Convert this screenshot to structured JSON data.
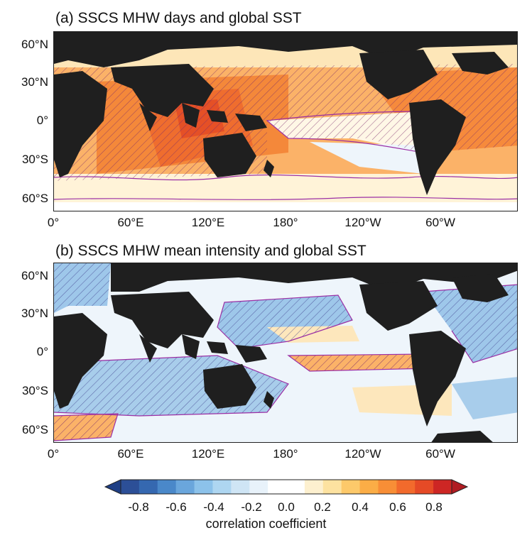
{
  "panels": [
    {
      "title": "(a) SSCS MHW days and global SST",
      "lat_ticks": [
        "60°N",
        "30°N",
        "0°",
        "30°S",
        "60°S"
      ],
      "lon_ticks": [
        "0°",
        "60°E",
        "120°E",
        "180°",
        "120°W",
        "60°W"
      ]
    },
    {
      "title": "(b) SSCS MHW mean intensity and global SST",
      "lat_ticks": [
        "60°N",
        "30°N",
        "0°",
        "30°S",
        "60°S"
      ],
      "lon_ticks": [
        "0°",
        "60°E",
        "120°E",
        "180°",
        "120°W",
        "60°W"
      ]
    }
  ],
  "colorbar": {
    "label": "correlation coefficient",
    "ticks": [
      "-0.8",
      "-0.6",
      "-0.4",
      "-0.2",
      "0.0",
      "0.2",
      "0.4",
      "0.6",
      "0.8"
    ],
    "colors": [
      "#2c4f97",
      "#3568b0",
      "#4a88c9",
      "#6aa6dc",
      "#8cc2ea",
      "#aed6f1",
      "#cfe5f5",
      "#e8f2fa",
      "#ffffff",
      "#ffffff",
      "#fdf0cf",
      "#fde2a0",
      "#fdc96a",
      "#fbad46",
      "#f88e36",
      "#f26a2c",
      "#e54a26",
      "#cd2624"
    ],
    "extend_low_color": "#1f3f85",
    "extend_high_color": "#b01c22"
  },
  "colors": {
    "land": "#1f1f1f",
    "contour": "#9b2fa4",
    "hatch": "#7a2a6a"
  }
}
